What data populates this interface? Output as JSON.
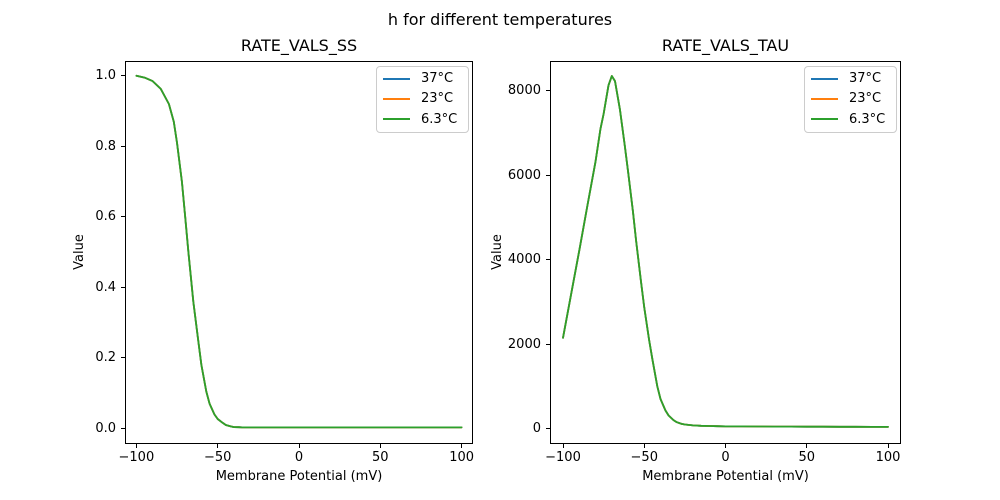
{
  "suptitle": "h for different temperatures",
  "colors": {
    "background": "#ffffff",
    "axes_edge": "#000000",
    "legend_border": "#cccccc",
    "series_blue": "#1f77b4",
    "series_orange": "#ff7f0e",
    "series_green": "#2ca02c"
  },
  "chart_data": [
    {
      "type": "line",
      "title": "RATE_VALS_SS",
      "xlabel": "Membrane Potential (mV)",
      "ylabel": "Value",
      "grid": false,
      "legend_position": "upper right",
      "xlim": [
        -107,
        107
      ],
      "ylim": [
        -0.044,
        1.042
      ],
      "xticks": [
        -100,
        -50,
        0,
        50,
        100
      ],
      "xtick_labels": [
        "−100",
        "−50",
        "0",
        "50",
        "100"
      ],
      "yticks": [
        0.0,
        0.2,
        0.4,
        0.6,
        0.8,
        1.0
      ],
      "ytick_labels": [
        "0.0",
        "0.2",
        "0.4",
        "0.6",
        "0.8",
        "1.0"
      ],
      "x": [
        -100,
        -95,
        -90,
        -85,
        -80,
        -77,
        -75,
        -72,
        -70,
        -68,
        -65,
        -62,
        -60,
        -57,
        -55,
        -52,
        -50,
        -47,
        -45,
        -42,
        -40,
        -37,
        -35,
        -32,
        -30,
        -27,
        -25,
        -20,
        -15,
        -10,
        -5,
        0,
        10,
        20,
        30,
        40,
        50,
        60,
        70,
        80,
        90,
        100
      ],
      "note": "All three temperature series overlap exactly; only the green 6.3°C line is visible on top.",
      "series": [
        {
          "name": "37°C",
          "color": "#1f77b4",
          "values": [
            1.0,
            0.995,
            0.985,
            0.963,
            0.92,
            0.87,
            0.81,
            0.7,
            0.6,
            0.5,
            0.36,
            0.25,
            0.18,
            0.105,
            0.07,
            0.04,
            0.027,
            0.016,
            0.01,
            0.006,
            0.004,
            0.0035,
            0.003,
            0.003,
            0.003,
            0.003,
            0.003,
            0.003,
            0.003,
            0.003,
            0.003,
            0.003,
            0.003,
            0.003,
            0.003,
            0.003,
            0.003,
            0.003,
            0.003,
            0.003,
            0.003,
            0.003
          ]
        },
        {
          "name": "23°C",
          "color": "#ff7f0e",
          "values": [
            1.0,
            0.995,
            0.985,
            0.963,
            0.92,
            0.87,
            0.81,
            0.7,
            0.6,
            0.5,
            0.36,
            0.25,
            0.18,
            0.105,
            0.07,
            0.04,
            0.027,
            0.016,
            0.01,
            0.006,
            0.004,
            0.0035,
            0.003,
            0.003,
            0.003,
            0.003,
            0.003,
            0.003,
            0.003,
            0.003,
            0.003,
            0.003,
            0.003,
            0.003,
            0.003,
            0.003,
            0.003,
            0.003,
            0.003,
            0.003,
            0.003,
            0.003
          ]
        },
        {
          "name": "6.3°C",
          "color": "#2ca02c",
          "values": [
            1.0,
            0.995,
            0.985,
            0.963,
            0.92,
            0.87,
            0.81,
            0.7,
            0.6,
            0.5,
            0.36,
            0.25,
            0.18,
            0.105,
            0.07,
            0.04,
            0.027,
            0.016,
            0.01,
            0.006,
            0.004,
            0.0035,
            0.003,
            0.003,
            0.003,
            0.003,
            0.003,
            0.003,
            0.003,
            0.003,
            0.003,
            0.003,
            0.003,
            0.003,
            0.003,
            0.003,
            0.003,
            0.003,
            0.003,
            0.003,
            0.003,
            0.003
          ]
        }
      ]
    },
    {
      "type": "line",
      "title": "RATE_VALS_TAU",
      "xlabel": "Membrane Potential (mV)",
      "ylabel": "Value",
      "grid": false,
      "legend_position": "upper right",
      "xlim": [
        -108,
        108
      ],
      "ylim": [
        -366,
        8705
      ],
      "xticks": [
        -100,
        -50,
        0,
        50,
        100
      ],
      "xtick_labels": [
        "−100",
        "−50",
        "0",
        "50",
        "100"
      ],
      "yticks": [
        0,
        2000,
        4000,
        6000,
        8000
      ],
      "ytick_labels": [
        "0",
        "2000",
        "4000",
        "6000",
        "8000"
      ],
      "x": [
        -100,
        -95,
        -90,
        -85,
        -80,
        -77,
        -75,
        -72,
        -70,
        -68,
        -65,
        -62,
        -60,
        -57,
        -55,
        -52,
        -50,
        -47,
        -45,
        -42,
        -40,
        -37,
        -35,
        -32,
        -30,
        -27,
        -25,
        -20,
        -15,
        -10,
        -5,
        0,
        10,
        20,
        30,
        40,
        50,
        60,
        70,
        80,
        90,
        100
      ],
      "note": "All three temperature series overlap exactly; only the green 6.3°C line is visible on top. Peak ≈ 8350 at −70 mV.",
      "series": [
        {
          "name": "37°C",
          "color": "#1f77b4",
          "values": [
            2150,
            3180,
            4220,
            5280,
            6320,
            7090,
            7450,
            8130,
            8350,
            8230,
            7560,
            6700,
            6100,
            5150,
            4450,
            3480,
            2860,
            2100,
            1640,
            1000,
            700,
            430,
            310,
            200,
            150,
            110,
            95,
            75,
            65,
            60,
            55,
            52,
            50,
            48,
            46,
            45,
            44,
            43,
            42,
            41,
            40,
            40
          ]
        },
        {
          "name": "23°C",
          "color": "#ff7f0e",
          "values": [
            2150,
            3180,
            4220,
            5280,
            6320,
            7090,
            7450,
            8130,
            8350,
            8230,
            7560,
            6700,
            6100,
            5150,
            4450,
            3480,
            2860,
            2100,
            1640,
            1000,
            700,
            430,
            310,
            200,
            150,
            110,
            95,
            75,
            65,
            60,
            55,
            52,
            50,
            48,
            46,
            45,
            44,
            43,
            42,
            41,
            40,
            40
          ]
        },
        {
          "name": "6.3°C",
          "color": "#2ca02c",
          "values": [
            2150,
            3180,
            4220,
            5280,
            6320,
            7090,
            7450,
            8130,
            8350,
            8230,
            7560,
            6700,
            6100,
            5150,
            4450,
            3480,
            2860,
            2100,
            1640,
            1000,
            700,
            430,
            310,
            200,
            150,
            110,
            95,
            75,
            65,
            60,
            55,
            52,
            50,
            48,
            46,
            45,
            44,
            43,
            42,
            41,
            40,
            40
          ]
        }
      ]
    }
  ]
}
